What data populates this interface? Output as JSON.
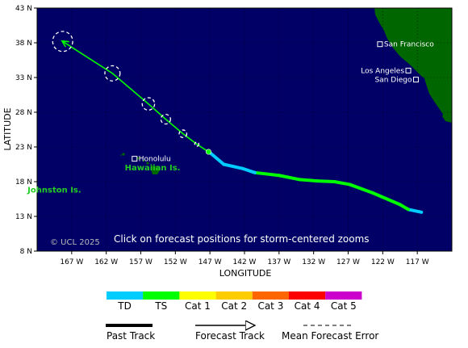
{
  "map": {
    "x_axis_title": "LONGITUDE",
    "y_axis_title": "LATITUDE",
    "lat_ticks": [
      "43 N",
      "38 N",
      "33 N",
      "28 N",
      "23 N",
      "18 N",
      "13 N",
      "8 N"
    ],
    "lon_ticks": [
      "167 W",
      "162 W",
      "157 W",
      "152 W",
      "147 W",
      "142 W",
      "137 W",
      "132 W",
      "127 W",
      "122 W",
      "117 W"
    ],
    "lat_range": [
      8,
      43
    ],
    "lon_range": [
      -172,
      -112
    ],
    "ocean_color": "#000066",
    "land_color": "#006600",
    "grid": true,
    "credit": "© UCL 2025",
    "instruction": "Click on forecast positions for storm-centered zooms"
  },
  "places": {
    "cities": [
      {
        "name": "San Francisco",
        "lon": -122.4,
        "lat": 37.8,
        "label_side": "right"
      },
      {
        "name": "Los Angeles",
        "lon": -118.3,
        "lat": 34.0,
        "label_side": "left"
      },
      {
        "name": "San Diego",
        "lon": -117.2,
        "lat": 32.7,
        "label_side": "left"
      },
      {
        "name": "Honolulu",
        "lon": -157.9,
        "lat": 21.3,
        "label_side": "right"
      }
    ],
    "regions": [
      {
        "name": "Hawaiian Is.",
        "lon": -155.3,
        "lat": 20.0
      },
      {
        "name": "Johnston Is.",
        "lon": -169.5,
        "lat": 16.8
      }
    ]
  },
  "storm": {
    "past_track": [
      {
        "lon": -116.4,
        "lat": 13.6,
        "category": "TD"
      },
      {
        "lon": -118.3,
        "lat": 14.0,
        "category": "TD"
      },
      {
        "lon": -119.5,
        "lat": 14.7,
        "category": "TS"
      },
      {
        "lon": -123.5,
        "lat": 16.4,
        "category": "TS"
      },
      {
        "lon": -126.8,
        "lat": 17.6,
        "category": "TS"
      },
      {
        "lon": -129.0,
        "lat": 18.0,
        "category": "TS"
      },
      {
        "lon": -131.5,
        "lat": 18.1,
        "category": "TS"
      },
      {
        "lon": -134.0,
        "lat": 18.3,
        "category": "TS"
      },
      {
        "lon": -137.0,
        "lat": 18.9,
        "category": "TS"
      },
      {
        "lon": -140.5,
        "lat": 19.3,
        "category": "TS"
      },
      {
        "lon": -142.3,
        "lat": 19.9,
        "category": "TD"
      },
      {
        "lon": -145.0,
        "lat": 20.5,
        "category": "TD"
      },
      {
        "lon": -146.9,
        "lat": 22.1,
        "category": "TD"
      }
    ],
    "current_position": {
      "lon": -147.2,
      "lat": 22.3
    },
    "forecast_track": [
      {
        "lon": -147.2,
        "lat": 22.3
      },
      {
        "lon": -148.9,
        "lat": 23.4
      },
      {
        "lon": -150.9,
        "lat": 24.9
      },
      {
        "lon": -153.4,
        "lat": 27.0
      },
      {
        "lon": -155.9,
        "lat": 29.2
      },
      {
        "lon": -161.1,
        "lat": 33.6
      },
      {
        "lon": -168.3,
        "lat": 38.2
      }
    ],
    "forecast_error_circles": [
      {
        "lon": -148.9,
        "lat": 23.4,
        "radius_deg": 0.3
      },
      {
        "lon": -150.9,
        "lat": 24.9,
        "radius_deg": 0.55
      },
      {
        "lon": -153.4,
        "lat": 27.0,
        "radius_deg": 0.7
      },
      {
        "lon": -155.9,
        "lat": 29.2,
        "radius_deg": 0.9
      },
      {
        "lon": -161.1,
        "lat": 33.6,
        "radius_deg": 1.1
      },
      {
        "lon": -168.3,
        "lat": 38.2,
        "radius_deg": 1.45
      }
    ]
  },
  "legend": {
    "scale": [
      {
        "label": "TD",
        "color": "#00ccff"
      },
      {
        "label": "TS",
        "color": "#00ff00"
      },
      {
        "label": "Cat 1",
        "color": "#ffff00"
      },
      {
        "label": "Cat 2",
        "color": "#ffcc00"
      },
      {
        "label": "Cat 3",
        "color": "#ff6600"
      },
      {
        "label": "Cat 4",
        "color": "#ff0000"
      },
      {
        "label": "Cat 5",
        "color": "#cc00cc"
      }
    ],
    "past_track_label": "Past Track",
    "forecast_track_label": "Forecast Track",
    "mean_error_label": "Mean Forecast Error"
  }
}
